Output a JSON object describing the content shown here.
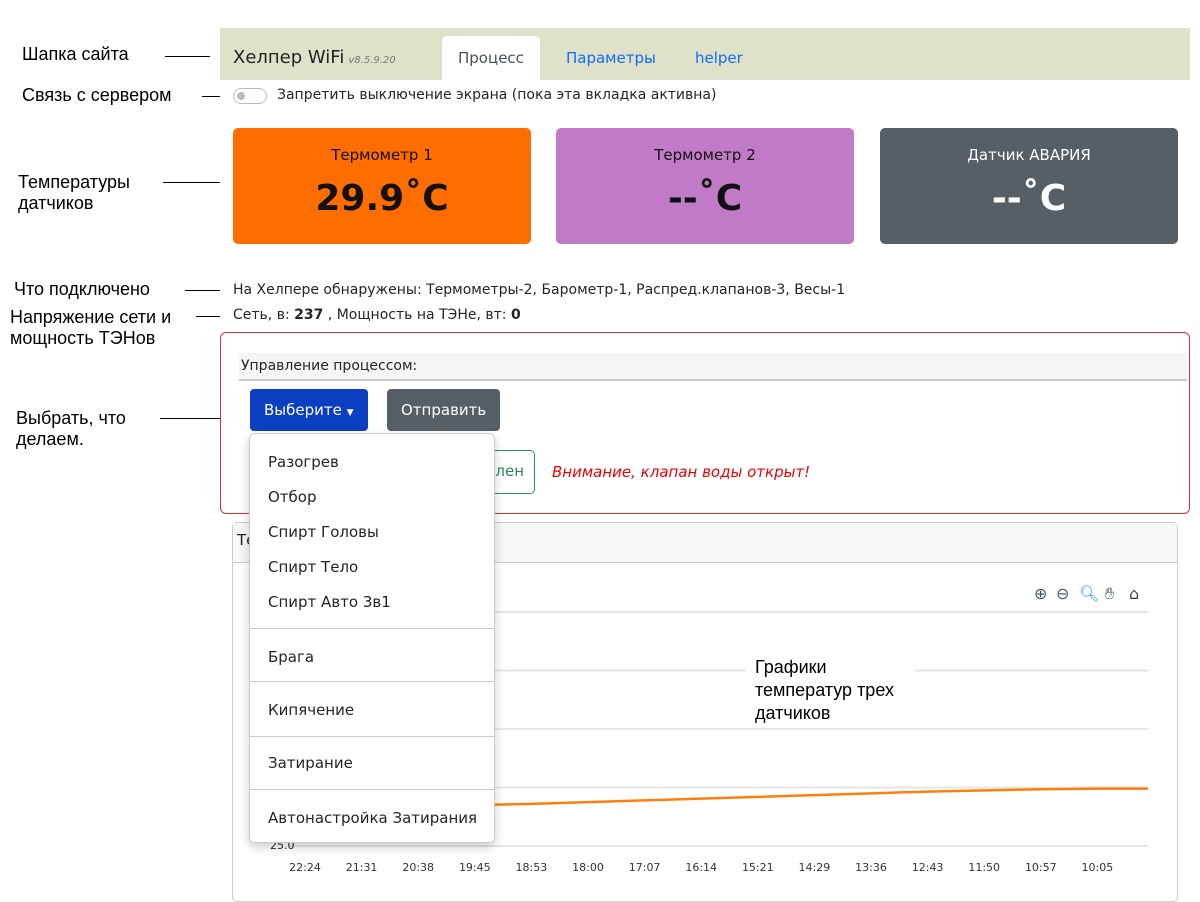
{
  "annotations": [
    "Шапка сайта",
    "Связь с сервером",
    "Температуры датчиков",
    "Что подключено",
    "Напряжение сети и мощность ТЭНов",
    "Выбрать, что делаем.",
    "Графики температур трех датчиков"
  ],
  "header": {
    "brand": "Хелпер WiFi",
    "version": "v8.5.9.20",
    "tabs": [
      "Процесс",
      "Параметры",
      "helper"
    ]
  },
  "screen_lock": {
    "label": "Запретить выключение экрана (пока эта вкладка активна)",
    "on": false
  },
  "cards": [
    {
      "title": "Термометр 1",
      "value": "29.9",
      "unit": "˚C",
      "color": "#ff6d00"
    },
    {
      "title": "Термометр 2",
      "value": "--",
      "unit": "˚C",
      "color": "#c17ac7"
    },
    {
      "title": "Датчик АВАРИЯ",
      "value": "--",
      "unit": "˚C",
      "color": "#565e66"
    }
  ],
  "detected": "На Хелпере обнаружены: Термометры-2, Барометр-1, Распред.клапанов-3, Весы-1",
  "power": {
    "net_label": "Сеть, в:",
    "net": "237",
    "power_label": ", Мощность на ТЭНе, вт:",
    "power": "0"
  },
  "control": {
    "title": "Управление процессом:",
    "select_label": "Выберите",
    "send_label": "Отправить",
    "status_btn": "лен",
    "warning": "Внимание, клапан воды открыт!"
  },
  "dropdown": [
    "Разогрев",
    "Отбор",
    "Спирт Головы",
    "Спирт Тело",
    "Спирт Авто 3в1",
    "Брага",
    "Кипячение",
    "Затирание",
    "Автонастройка Затирания"
  ],
  "chart_panel": {
    "title": "Те"
  },
  "chart_data": {
    "type": "line",
    "x": [
      "22:24",
      "21:31",
      "20:38",
      "19:45",
      "18:53",
      "18:00",
      "17:07",
      "16:14",
      "15:21",
      "14:29",
      "13:36",
      "12:43",
      "11:50",
      "10:57",
      "10:05"
    ],
    "ytick_labels": [
      "25.0"
    ],
    "series": [
      {
        "color": "#ff7f0e",
        "values": [
          null,
          null,
          null,
          25.7,
          25.72,
          25.75,
          25.78,
          25.81,
          25.84,
          25.87,
          25.9,
          25.93,
          25.95,
          25.97,
          25.98
        ]
      }
    ],
    "grid": true,
    "toolbar": [
      "zoom-in-icon",
      "zoom-out-icon",
      "zoom-select-icon",
      "pan-icon",
      "home-icon"
    ]
  }
}
